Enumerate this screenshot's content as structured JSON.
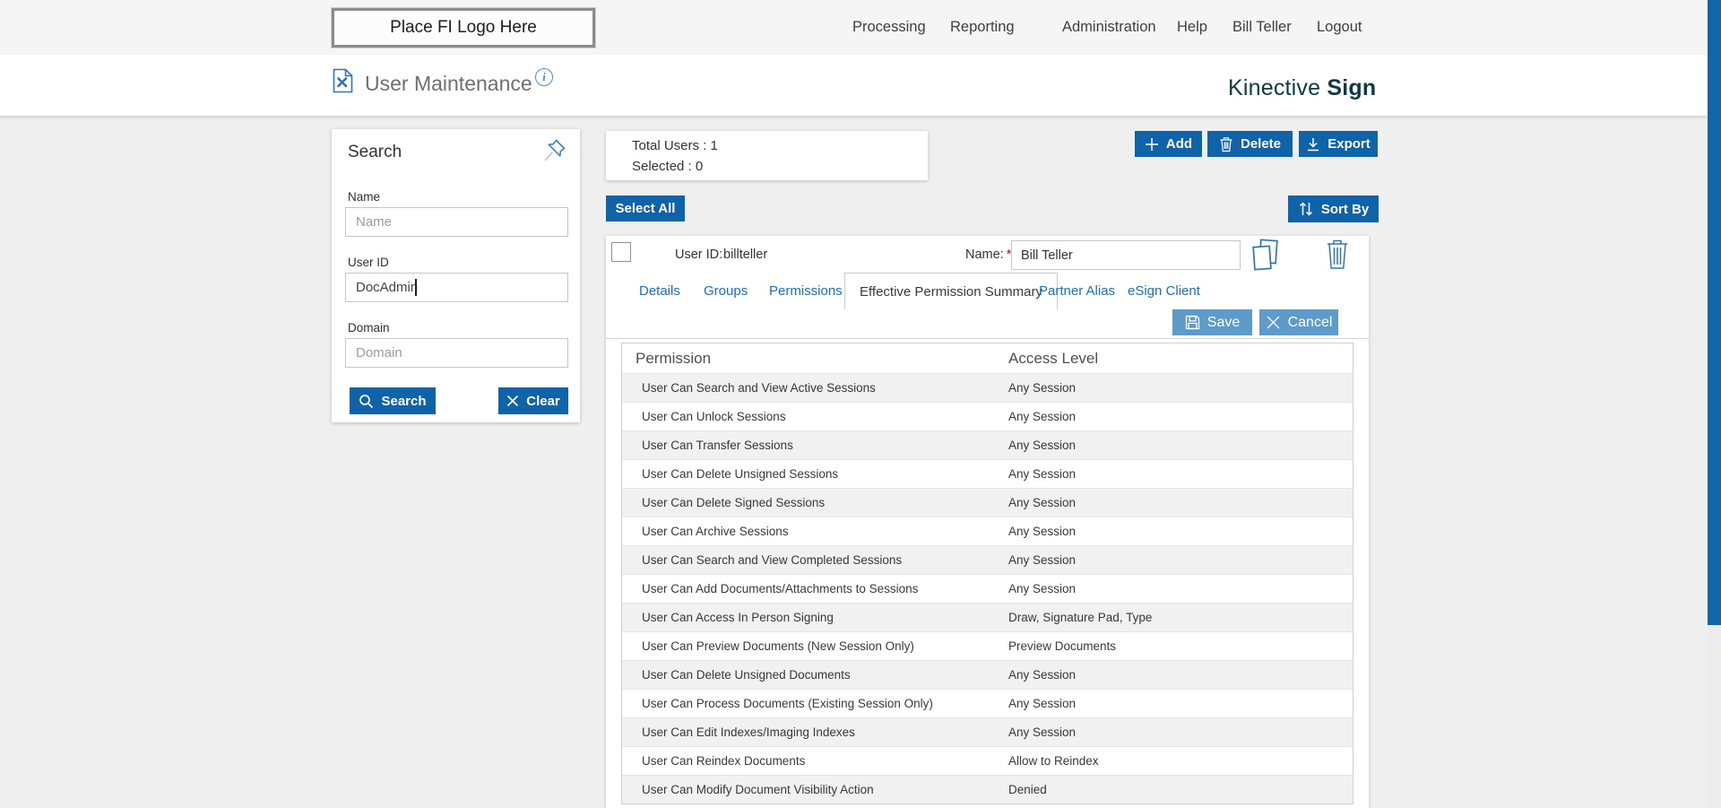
{
  "topbar": {
    "logo_text": "Place FI Logo Here",
    "nav_items": [
      "Processing",
      "Reporting",
      "Administration",
      "Help",
      "Bill Teller",
      "Logout"
    ]
  },
  "header": {
    "title": "User Maintenance",
    "info_glyph": "i",
    "brand_regular": "Kinective",
    "brand_bold": "Sign"
  },
  "search_panel": {
    "title": "Search",
    "name_label": "Name",
    "name_placeholder": "Name",
    "user_id_label": "User ID",
    "user_id_value": "DocAdmin",
    "domain_label": "Domain",
    "domain_placeholder": "Domain",
    "search_button": "Search",
    "clear_button": "Clear"
  },
  "stats": {
    "total_users": "Total Users : 1",
    "selected": "Selected : 0"
  },
  "toolbar": {
    "add": "Add",
    "delete": "Delete",
    "export": "Export"
  },
  "list_controls": {
    "select_all": "Select All",
    "sort_by": "Sort By"
  },
  "user_row": {
    "user_id_label": "User ID:",
    "user_id_value": "billteller",
    "name_label": "Name:",
    "required_mark": "*",
    "name_value": "Bill Teller"
  },
  "tabs": [
    {
      "label": "Details",
      "active": false
    },
    {
      "label": "Groups",
      "active": false
    },
    {
      "label": "Permissions",
      "active": false
    },
    {
      "label": "Effective Permission Summary",
      "active": true
    },
    {
      "label": "Partner Alias",
      "active": false
    },
    {
      "label": "eSign Client",
      "active": false
    }
  ],
  "form_actions": {
    "save": "Save",
    "cancel": "Cancel"
  },
  "permissions_table": {
    "columns": [
      "Permission",
      "Access Level"
    ],
    "rows": [
      [
        "User Can Search and View Active Sessions",
        "Any Session"
      ],
      [
        "User Can Unlock Sessions",
        "Any Session"
      ],
      [
        "User Can Transfer Sessions",
        "Any Session"
      ],
      [
        "User Can Delete Unsigned Sessions",
        "Any Session"
      ],
      [
        "User Can Delete Signed Sessions",
        "Any Session"
      ],
      [
        "User Can Archive Sessions",
        "Any Session"
      ],
      [
        "User Can Search and View Completed Sessions",
        "Any Session"
      ],
      [
        "User Can Add Documents/Attachments to Sessions",
        "Any Session"
      ],
      [
        "User Can Access In Person Signing",
        "Draw, Signature Pad, Type"
      ],
      [
        "User Can Preview Documents (New Session Only)",
        "Preview Documents"
      ],
      [
        "User Can Delete Unsigned Documents",
        "Any Session"
      ],
      [
        "User Can Process Documents (Existing Session Only)",
        "Any Session"
      ],
      [
        "User Can Edit Indexes/Imaging Indexes",
        "Any Session"
      ],
      [
        "User Can Reindex Documents",
        "Allow to Reindex"
      ],
      [
        "User Can Modify Document Visibility Action",
        "Denied"
      ]
    ]
  },
  "colors": {
    "primary_button": "#0f63a8",
    "secondary_button": "#5d9bcb",
    "link_blue": "#1a70b8",
    "brand_dark": "#0d3a45",
    "scrollbar_thumb": "#1365a9",
    "required_red": "#d40000",
    "row_stripe": "#f1f1f1"
  }
}
